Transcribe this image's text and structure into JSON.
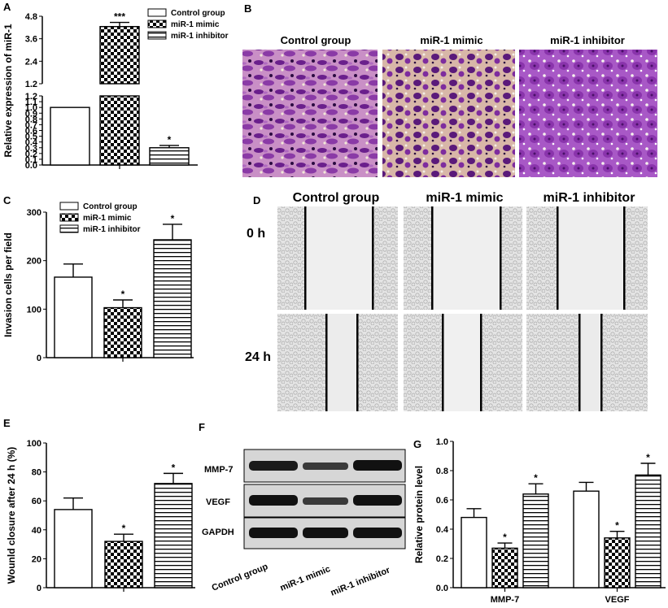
{
  "panels": {
    "A": "A",
    "B": "B",
    "C": "C",
    "D": "D",
    "E": "E",
    "F": "F",
    "G": "G"
  },
  "groups": [
    "Control group",
    "miR-1 mimic",
    "miR-1 inhibitor"
  ],
  "colors": {
    "bar_fill": "#ffffff",
    "stroke": "#000000",
    "stain": "#8a3aa6",
    "blot": "#1a1a1a"
  },
  "panel_B": {
    "headers": [
      "Control group",
      "miR-1 mimic",
      "miR-1 inhibitor"
    ]
  },
  "panel_D": {
    "headers": [
      "Control group",
      "miR-1 mimic",
      "miR-1 inhibitor"
    ],
    "row_labels": [
      "0 h",
      "24 h"
    ]
  },
  "panel_F": {
    "bands": [
      "MMP-7",
      "VEGF",
      "GAPDH"
    ],
    "lanes": [
      "Control group",
      "miR-1 mimic",
      "miR-1 inhibitor"
    ]
  },
  "chart_data": [
    {
      "id": "A",
      "type": "bar",
      "ylabel": "Relative expression of miR-1",
      "categories": [
        "Control group",
        "miR-1 mimic",
        "miR-1 inhibitor"
      ],
      "values": [
        1.0,
        4.25,
        0.3
      ],
      "errors": [
        0,
        0.22,
        0.04
      ],
      "significance": [
        "",
        "***",
        "*"
      ],
      "patterns": [
        "plain",
        "check",
        "hstripe"
      ],
      "axis_break": [
        1.2,
        1.2
      ],
      "yticks_lower": [
        "0.0",
        "0.1",
        "0.2",
        "0.3",
        "0.4",
        "0.5",
        "0.6",
        "0.7",
        "0.8",
        "0.9",
        "1.0",
        "1.1",
        "1.2"
      ],
      "yticks_upper": [
        "1.2",
        "2.4",
        "3.6",
        "4.8"
      ],
      "legend": [
        "Control group",
        "miR-1 mimic",
        "miR-1 inhibitor"
      ]
    },
    {
      "id": "C",
      "type": "bar",
      "ylabel": "Invasion cells per field",
      "categories": [
        "Control group",
        "miR-1 mimic",
        "miR-1 inhibitor"
      ],
      "values": [
        166,
        103,
        243
      ],
      "errors": [
        27,
        16,
        32
      ],
      "significance": [
        "",
        "*",
        "*"
      ],
      "patterns": [
        "plain",
        "check",
        "hstripe"
      ],
      "ylim": [
        0,
        300
      ],
      "yticks": [
        "0",
        "100",
        "200",
        "300"
      ],
      "legend": [
        "Control group",
        "miR-1 mimic",
        "miR-1 inhibitor"
      ]
    },
    {
      "id": "E",
      "type": "bar",
      "ylabel": "Wounld closure after 24 h (%)",
      "categories": [
        "Control group",
        "miR-1 mimic",
        "miR-1 inhibitor"
      ],
      "values": [
        54,
        32,
        72
      ],
      "errors": [
        8,
        5,
        7
      ],
      "significance": [
        "",
        "*",
        "*"
      ],
      "patterns": [
        "plain",
        "check",
        "hstripe"
      ],
      "ylim": [
        0,
        100
      ],
      "yticks": [
        "0",
        "20",
        "40",
        "60",
        "80",
        "100"
      ]
    },
    {
      "id": "G",
      "type": "bar",
      "ylabel": "Relative protein level",
      "categories": [
        "MMP-7",
        "VEGF"
      ],
      "series": [
        {
          "values": [
            0.48,
            0.66
          ],
          "errors": [
            0.06,
            0.06
          ],
          "pattern": "plain",
          "significance": [
            "",
            ""
          ]
        },
        {
          "values": [
            0.27,
            0.34
          ],
          "errors": [
            0.035,
            0.045
          ],
          "pattern": "check",
          "significance": [
            "*",
            "*"
          ]
        },
        {
          "values": [
            0.64,
            0.77
          ],
          "errors": [
            0.07,
            0.08
          ],
          "pattern": "hstripe",
          "significance": [
            "*",
            "*"
          ]
        }
      ],
      "ylim": [
        0,
        1.0
      ],
      "yticks": [
        "0.0",
        "0.2",
        "0.4",
        "0.6",
        "0.8",
        "1.0"
      ]
    }
  ]
}
